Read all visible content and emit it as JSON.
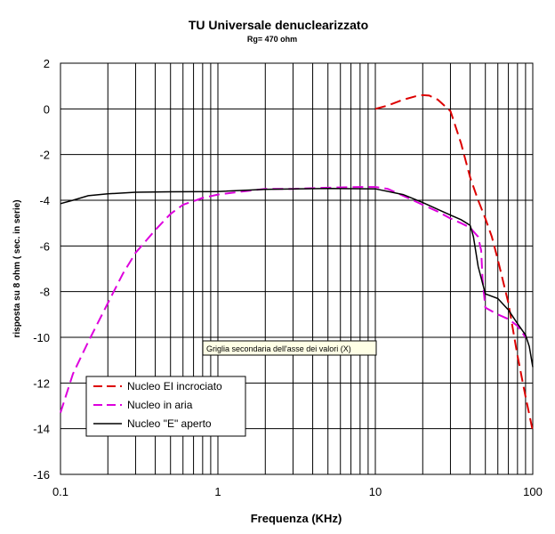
{
  "chart_data": {
    "type": "line",
    "title": "TU Universale denuclearizzato",
    "subtitle": "Rg= 470 ohm",
    "xlabel": "Frequenza (KHz)",
    "ylabel": "risposta su 8 ohm ( sec. in serie)",
    "xscale": "log",
    "xlim": [
      0.1,
      100
    ],
    "ylim": [
      -16,
      2
    ],
    "xticks": [
      "0.1",
      "1",
      "10",
      "100"
    ],
    "yticks": [
      "2",
      "0",
      "-2",
      "-4",
      "-6",
      "-8",
      "-10",
      "-12",
      "-14",
      "-16"
    ],
    "grid": "vertical log grid, horizontal major gridlines",
    "legend": "bottom-left",
    "annotation": "Griglia secondaria dell'asse dei valori (X)",
    "series": [
      {
        "name": "Nucleo EI incrociato",
        "color": "#dd0000",
        "dash": "long-dash",
        "x": [
          10,
          12,
          15,
          18,
          20,
          22,
          25,
          30,
          35,
          40,
          45,
          50,
          55,
          60,
          70,
          80,
          90,
          100
        ],
        "y": [
          0.0,
          0.15,
          0.4,
          0.55,
          0.6,
          0.58,
          0.4,
          -0.1,
          -1.5,
          -3.0,
          -4.0,
          -4.8,
          -5.6,
          -6.6,
          -8.5,
          -10.8,
          -12.6,
          -14.1
        ]
      },
      {
        "name": "Nucleo in aria",
        "color": "#dd00dd",
        "dash": "long-dash",
        "x": [
          0.1,
          0.12,
          0.15,
          0.2,
          0.25,
          0.3,
          0.4,
          0.5,
          0.6,
          0.8,
          1,
          1.5,
          2,
          3,
          5,
          8,
          10,
          12,
          15,
          20,
          25,
          30,
          35,
          40,
          45,
          47,
          48,
          50,
          60,
          70,
          80,
          90
        ],
        "y": [
          -13.3,
          -11.6,
          -10.2,
          -8.5,
          -7.2,
          -6.3,
          -5.3,
          -4.6,
          -4.2,
          -3.9,
          -3.75,
          -3.6,
          -3.5,
          -3.5,
          -3.45,
          -3.42,
          -3.42,
          -3.5,
          -3.8,
          -4.2,
          -4.5,
          -4.8,
          -5.0,
          -5.2,
          -5.6,
          -6.2,
          -7.5,
          -8.7,
          -9.0,
          -9.2,
          -9.5,
          -10.0
        ]
      },
      {
        "name": "Nucleo \"E\" aperto",
        "color": "#000000",
        "dash": "solid",
        "x": [
          0.1,
          0.12,
          0.15,
          0.2,
          0.3,
          0.5,
          1,
          2,
          5,
          10,
          15,
          20,
          25,
          30,
          35,
          38,
          40,
          42,
          45,
          50,
          60,
          70,
          80,
          90,
          95,
          100
        ],
        "y": [
          -4.15,
          -4.0,
          -3.8,
          -3.72,
          -3.65,
          -3.63,
          -3.62,
          -3.52,
          -3.48,
          -3.5,
          -3.75,
          -4.1,
          -4.4,
          -4.65,
          -4.85,
          -5.0,
          -5.1,
          -5.6,
          -6.9,
          -8.1,
          -8.3,
          -8.8,
          -9.4,
          -9.9,
          -10.4,
          -11.3
        ]
      }
    ]
  }
}
